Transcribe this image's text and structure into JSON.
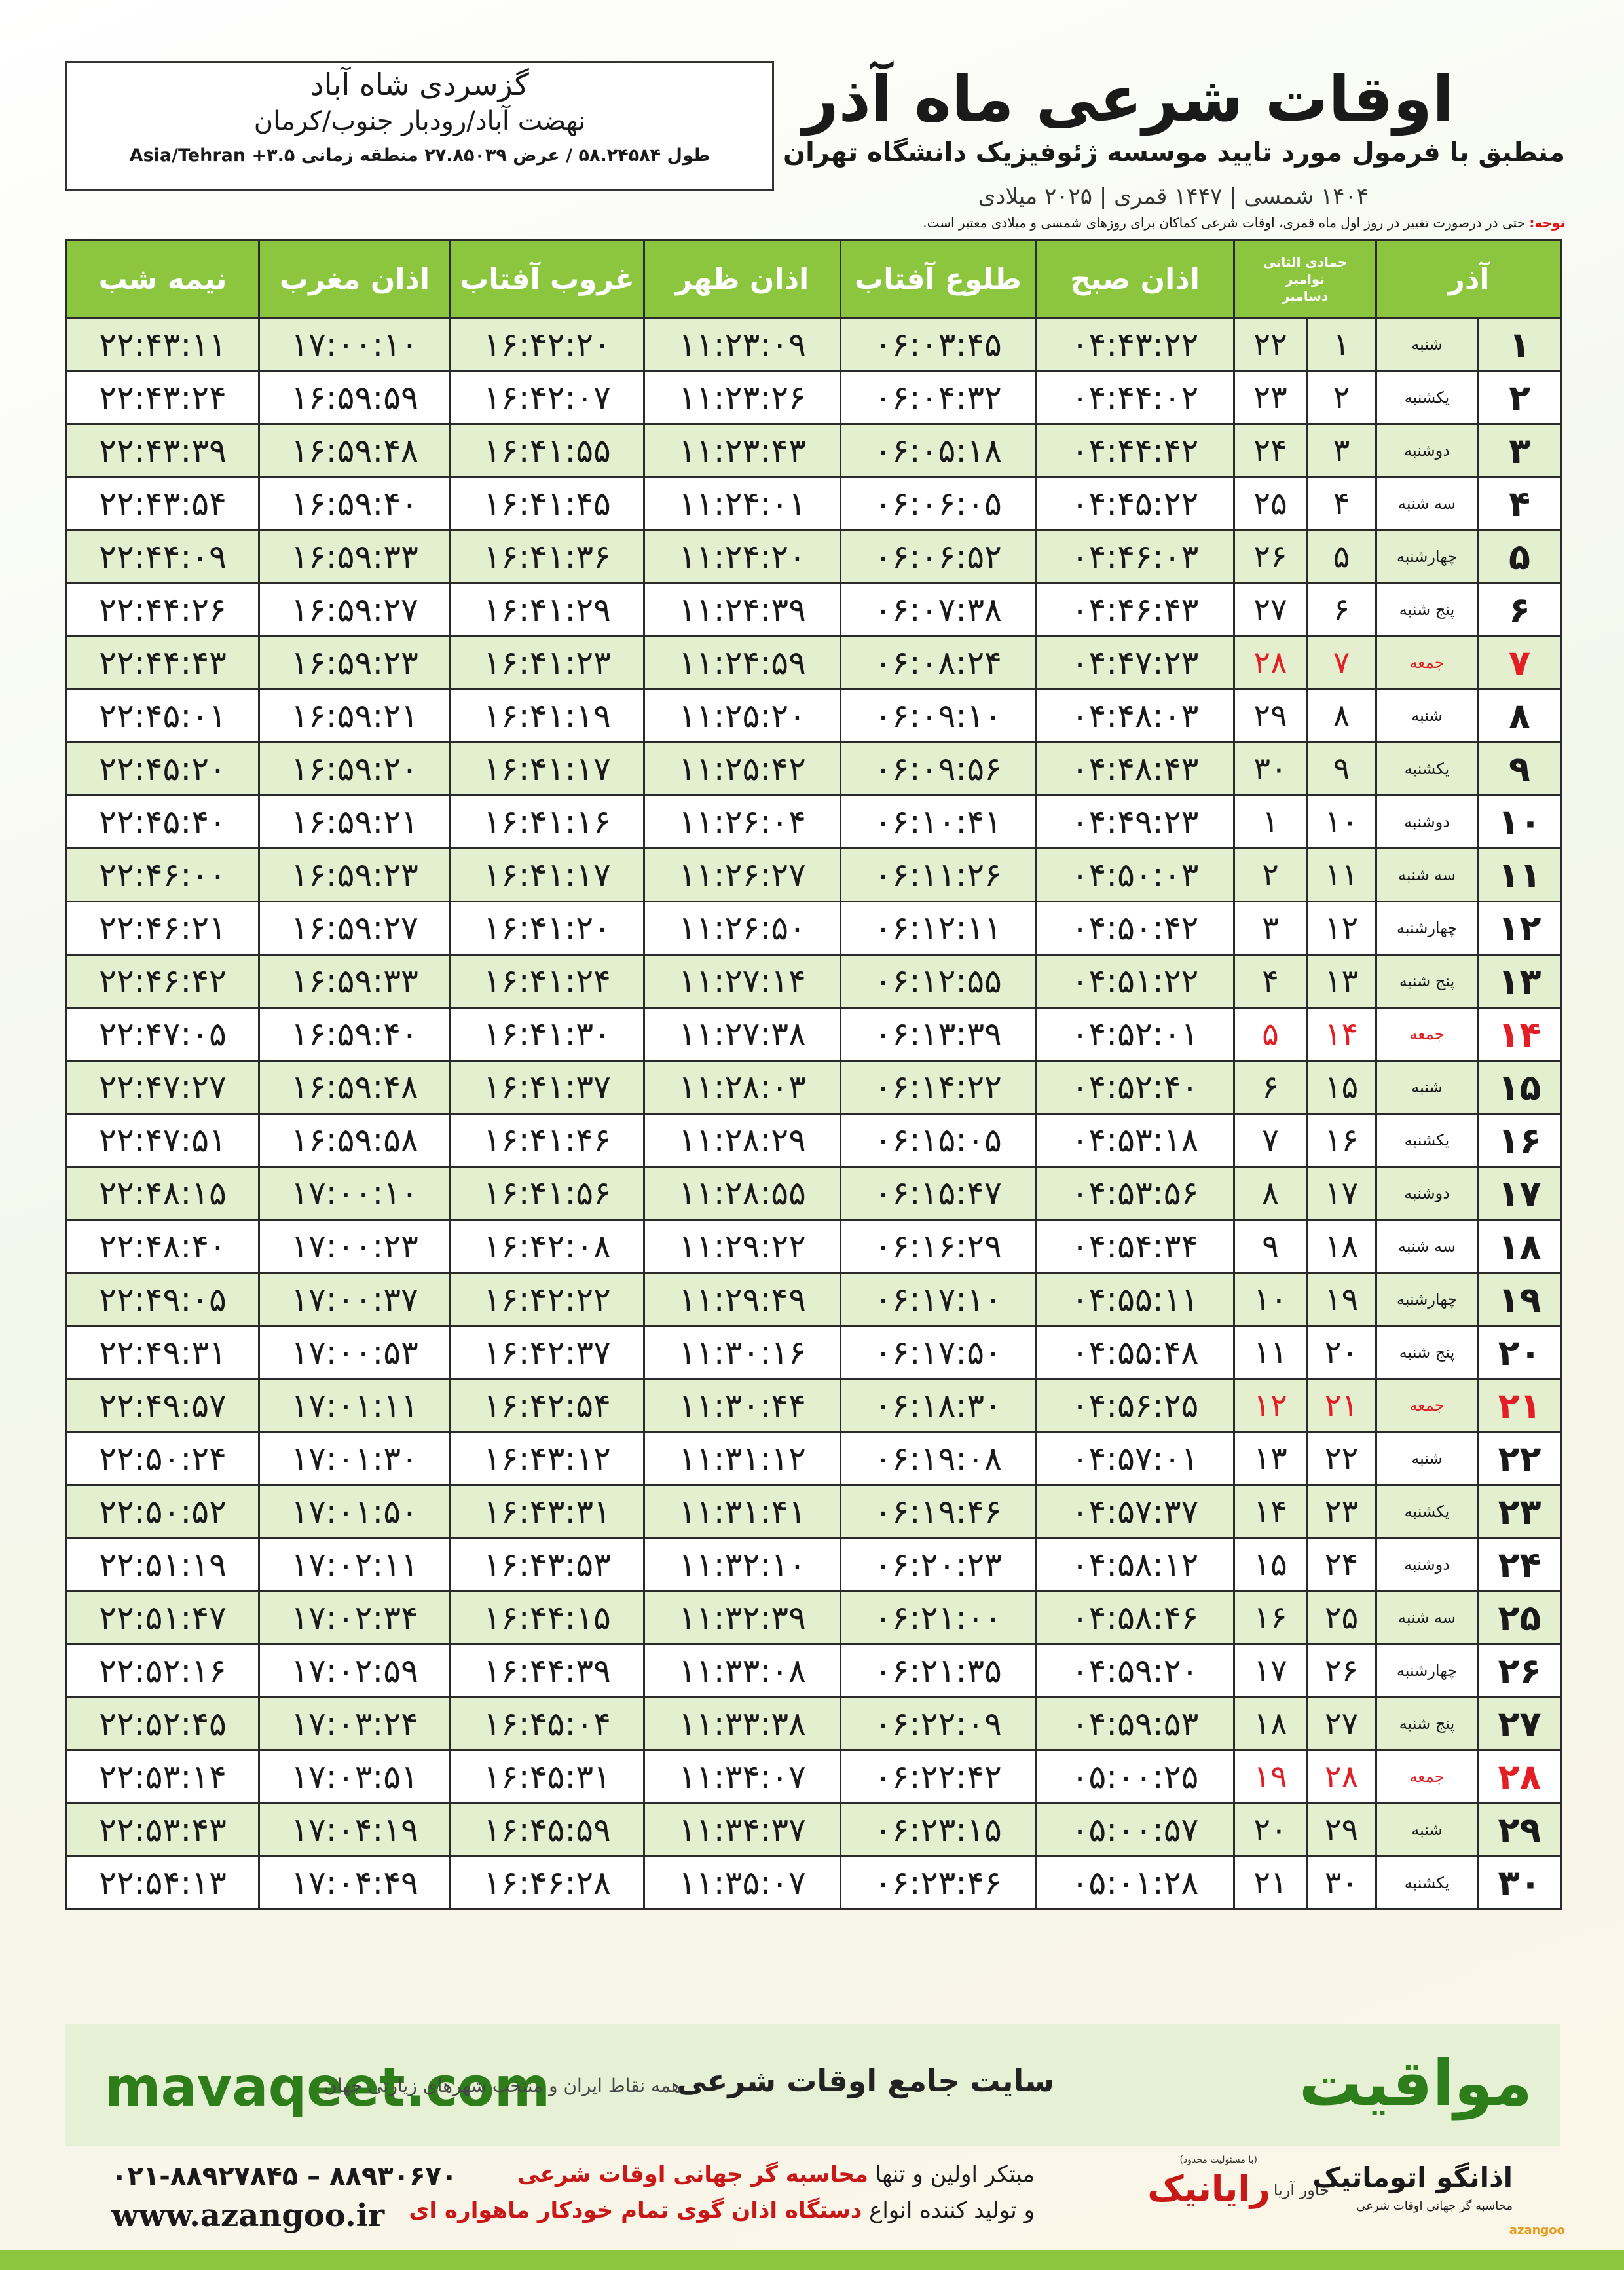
{
  "header": {
    "title": "اوقات شرعی ماه آذر",
    "subtitle": "منطبق با فرمول مورد تایید موسسه ژئوفیزیک دانشگاه تهران",
    "dates": "۱۴۰۴ شمسی | ۱۴۴۷ قمری | ۲۰۲۵ میلادی",
    "location": "گزسردی شاه آباد",
    "region": "نهضت آباد/رودبار جنوب/کرمان",
    "coordinates": "طول ۵۸.۲۴۵۸۴ / عرض ۲۷.۸۵۰۳۹ منطقه زمانی ۳.۵+ Asia/Tehran",
    "note_label": "توجه:",
    "note": "حتی در درصورت تغییر در روز اول ماه قمری، اوقات شرعی کماکان برای روزهای شمسی و میلادی معتبر است."
  },
  "table": {
    "columns": [
      "آذر",
      "جمادی الثانی",
      "نوامبر",
      "دسامبر",
      "اذان صبح",
      "طلوع آفتاب",
      "اذان ظهر",
      "غروب آفتاب",
      "اذان مغرب",
      "نیمه شب"
    ],
    "holiday_color": "#e31e24",
    "rows": [
      {
        "cells": [
          "۱",
          "شنبه",
          "۱",
          "۲۲",
          "۰۴:۴۳:۲۲",
          "۰۶:۰۳:۴۵",
          "۱۱:۲۳:۰۹",
          "۱۶:۴۲:۲۰",
          "۱۷:۰۰:۱۰",
          "۲۲:۴۳:۱۱"
        ],
        "holiday": false
      },
      {
        "cells": [
          "۲",
          "یکشنبه",
          "۲",
          "۲۳",
          "۰۴:۴۴:۰۲",
          "۰۶:۰۴:۳۲",
          "۱۱:۲۳:۲۶",
          "۱۶:۴۲:۰۷",
          "۱۶:۵۹:۵۹",
          "۲۲:۴۳:۲۴"
        ],
        "holiday": false
      },
      {
        "cells": [
          "۳",
          "دوشنبه",
          "۳",
          "۲۴",
          "۰۴:۴۴:۴۲",
          "۰۶:۰۵:۱۸",
          "۱۱:۲۳:۴۳",
          "۱۶:۴۱:۵۵",
          "۱۶:۵۹:۴۸",
          "۲۲:۴۳:۳۹"
        ],
        "holiday": false
      },
      {
        "cells": [
          "۴",
          "سه شنبه",
          "۴",
          "۲۵",
          "۰۴:۴۵:۲۲",
          "۰۶:۰۶:۰۵",
          "۱۱:۲۴:۰۱",
          "۱۶:۴۱:۴۵",
          "۱۶:۵۹:۴۰",
          "۲۲:۴۳:۵۴"
        ],
        "holiday": false
      },
      {
        "cells": [
          "۵",
          "چهارشنبه",
          "۵",
          "۲۶",
          "۰۴:۴۶:۰۳",
          "۰۶:۰۶:۵۲",
          "۱۱:۲۴:۲۰",
          "۱۶:۴۱:۳۶",
          "۱۶:۵۹:۳۳",
          "۲۲:۴۴:۰۹"
        ],
        "holiday": false
      },
      {
        "cells": [
          "۶",
          "پنج شنبه",
          "۶",
          "۲۷",
          "۰۴:۴۶:۴۳",
          "۰۶:۰۷:۳۸",
          "۱۱:۲۴:۳۹",
          "۱۶:۴۱:۲۹",
          "۱۶:۵۹:۲۷",
          "۲۲:۴۴:۲۶"
        ],
        "holiday": false
      },
      {
        "cells": [
          "۷",
          "جمعه",
          "۷",
          "۲۸",
          "۰۴:۴۷:۲۳",
          "۰۶:۰۸:۲۴",
          "۱۱:۲۴:۵۹",
          "۱۶:۴۱:۲۳",
          "۱۶:۵۹:۲۳",
          "۲۲:۴۴:۴۳"
        ],
        "holiday": true
      },
      {
        "cells": [
          "۸",
          "شنبه",
          "۸",
          "۲۹",
          "۰۴:۴۸:۰۳",
          "۰۶:۰۹:۱۰",
          "۱۱:۲۵:۲۰",
          "۱۶:۴۱:۱۹",
          "۱۶:۵۹:۲۱",
          "۲۲:۴۵:۰۱"
        ],
        "holiday": false
      },
      {
        "cells": [
          "۹",
          "یکشنبه",
          "۹",
          "۳۰",
          "۰۴:۴۸:۴۳",
          "۰۶:۰۹:۵۶",
          "۱۱:۲۵:۴۲",
          "۱۶:۴۱:۱۷",
          "۱۶:۵۹:۲۰",
          "۲۲:۴۵:۲۰"
        ],
        "holiday": false
      },
      {
        "cells": [
          "۱۰",
          "دوشنبه",
          "۱۰",
          "۱",
          "۰۴:۴۹:۲۳",
          "۰۶:۱۰:۴۱",
          "۱۱:۲۶:۰۴",
          "۱۶:۴۱:۱۶",
          "۱۶:۵۹:۲۱",
          "۲۲:۴۵:۴۰"
        ],
        "holiday": false
      },
      {
        "cells": [
          "۱۱",
          "سه شنبه",
          "۱۱",
          "۲",
          "۰۴:۵۰:۰۳",
          "۰۶:۱۱:۲۶",
          "۱۱:۲۶:۲۷",
          "۱۶:۴۱:۱۷",
          "۱۶:۵۹:۲۳",
          "۲۲:۴۶:۰۰"
        ],
        "holiday": false
      },
      {
        "cells": [
          "۱۲",
          "چهارشنبه",
          "۱۲",
          "۳",
          "۰۴:۵۰:۴۲",
          "۰۶:۱۲:۱۱",
          "۱۱:۲۶:۵۰",
          "۱۶:۴۱:۲۰",
          "۱۶:۵۹:۲۷",
          "۲۲:۴۶:۲۱"
        ],
        "holiday": false
      },
      {
        "cells": [
          "۱۳",
          "پنج شنبه",
          "۱۳",
          "۴",
          "۰۴:۵۱:۲۲",
          "۰۶:۱۲:۵۵",
          "۱۱:۲۷:۱۴",
          "۱۶:۴۱:۲۴",
          "۱۶:۵۹:۳۳",
          "۲۲:۴۶:۴۲"
        ],
        "holiday": false
      },
      {
        "cells": [
          "۱۴",
          "جمعه",
          "۱۴",
          "۵",
          "۰۴:۵۲:۰۱",
          "۰۶:۱۳:۳۹",
          "۱۱:۲۷:۳۸",
          "۱۶:۴۱:۳۰",
          "۱۶:۵۹:۴۰",
          "۲۲:۴۷:۰۵"
        ],
        "holiday": true
      },
      {
        "cells": [
          "۱۵",
          "شنبه",
          "۱۵",
          "۶",
          "۰۴:۵۲:۴۰",
          "۰۶:۱۴:۲۲",
          "۱۱:۲۸:۰۳",
          "۱۶:۴۱:۳۷",
          "۱۶:۵۹:۴۸",
          "۲۲:۴۷:۲۷"
        ],
        "holiday": false
      },
      {
        "cells": [
          "۱۶",
          "یکشنبه",
          "۱۶",
          "۷",
          "۰۴:۵۳:۱۸",
          "۰۶:۱۵:۰۵",
          "۱۱:۲۸:۲۹",
          "۱۶:۴۱:۴۶",
          "۱۶:۵۹:۵۸",
          "۲۲:۴۷:۵۱"
        ],
        "holiday": false
      },
      {
        "cells": [
          "۱۷",
          "دوشنبه",
          "۱۷",
          "۸",
          "۰۴:۵۳:۵۶",
          "۰۶:۱۵:۴۷",
          "۱۱:۲۸:۵۵",
          "۱۶:۴۱:۵۶",
          "۱۷:۰۰:۱۰",
          "۲۲:۴۸:۱۵"
        ],
        "holiday": false
      },
      {
        "cells": [
          "۱۸",
          "سه شنبه",
          "۱۸",
          "۹",
          "۰۴:۵۴:۳۴",
          "۰۶:۱۶:۲۹",
          "۱۱:۲۹:۲۲",
          "۱۶:۴۲:۰۸",
          "۱۷:۰۰:۲۳",
          "۲۲:۴۸:۴۰"
        ],
        "holiday": false
      },
      {
        "cells": [
          "۱۹",
          "چهارشنبه",
          "۱۹",
          "۱۰",
          "۰۴:۵۵:۱۱",
          "۰۶:۱۷:۱۰",
          "۱۱:۲۹:۴۹",
          "۱۶:۴۲:۲۲",
          "۱۷:۰۰:۳۷",
          "۲۲:۴۹:۰۵"
        ],
        "holiday": false
      },
      {
        "cells": [
          "۲۰",
          "پنج شنبه",
          "۲۰",
          "۱۱",
          "۰۴:۵۵:۴۸",
          "۰۶:۱۷:۵۰",
          "۱۱:۳۰:۱۶",
          "۱۶:۴۲:۳۷",
          "۱۷:۰۰:۵۳",
          "۲۲:۴۹:۳۱"
        ],
        "holiday": false
      },
      {
        "cells": [
          "۲۱",
          "جمعه",
          "۲۱",
          "۱۲",
          "۰۴:۵۶:۲۵",
          "۰۶:۱۸:۳۰",
          "۱۱:۳۰:۴۴",
          "۱۶:۴۲:۵۴",
          "۱۷:۰۱:۱۱",
          "۲۲:۴۹:۵۷"
        ],
        "holiday": true
      },
      {
        "cells": [
          "۲۲",
          "شنبه",
          "۲۲",
          "۱۳",
          "۰۴:۵۷:۰۱",
          "۰۶:۱۹:۰۸",
          "۱۱:۳۱:۱۲",
          "۱۶:۴۳:۱۲",
          "۱۷:۰۱:۳۰",
          "۲۲:۵۰:۲۴"
        ],
        "holiday": false
      },
      {
        "cells": [
          "۲۳",
          "یکشنبه",
          "۲۳",
          "۱۴",
          "۰۴:۵۷:۳۷",
          "۰۶:۱۹:۴۶",
          "۱۱:۳۱:۴۱",
          "۱۶:۴۳:۳۱",
          "۱۷:۰۱:۵۰",
          "۲۲:۵۰:۵۲"
        ],
        "holiday": false
      },
      {
        "cells": [
          "۲۴",
          "دوشنبه",
          "۲۴",
          "۱۵",
          "۰۴:۵۸:۱۲",
          "۰۶:۲۰:۲۳",
          "۱۱:۳۲:۱۰",
          "۱۶:۴۳:۵۳",
          "۱۷:۰۲:۱۱",
          "۲۲:۵۱:۱۹"
        ],
        "holiday": false
      },
      {
        "cells": [
          "۲۵",
          "سه شنبه",
          "۲۵",
          "۱۶",
          "۰۴:۵۸:۴۶",
          "۰۶:۲۱:۰۰",
          "۱۱:۳۲:۳۹",
          "۱۶:۴۴:۱۵",
          "۱۷:۰۲:۳۴",
          "۲۲:۵۱:۴۷"
        ],
        "holiday": false
      },
      {
        "cells": [
          "۲۶",
          "چهارشنبه",
          "۲۶",
          "۱۷",
          "۰۴:۵۹:۲۰",
          "۰۶:۲۱:۳۵",
          "۱۱:۳۳:۰۸",
          "۱۶:۴۴:۳۹",
          "۱۷:۰۲:۵۹",
          "۲۲:۵۲:۱۶"
        ],
        "holiday": false
      },
      {
        "cells": [
          "۲۷",
          "پنج شنبه",
          "۲۷",
          "۱۸",
          "۰۴:۵۹:۵۳",
          "۰۶:۲۲:۰۹",
          "۱۱:۳۳:۳۸",
          "۱۶:۴۵:۰۴",
          "۱۷:۰۳:۲۴",
          "۲۲:۵۲:۴۵"
        ],
        "holiday": false
      },
      {
        "cells": [
          "۲۸",
          "جمعه",
          "۲۸",
          "۱۹",
          "۰۵:۰۰:۲۵",
          "۰۶:۲۲:۴۲",
          "۱۱:۳۴:۰۷",
          "۱۶:۴۵:۳۱",
          "۱۷:۰۳:۵۱",
          "۲۲:۵۳:۱۴"
        ],
        "holiday": true
      },
      {
        "cells": [
          "۲۹",
          "شنبه",
          "۲۹",
          "۲۰",
          "۰۵:۰۰:۵۷",
          "۰۶:۲۳:۱۵",
          "۱۱:۳۴:۳۷",
          "۱۶:۴۵:۵۹",
          "۱۷:۰۴:۱۹",
          "۲۲:۵۳:۴۳"
        ],
        "holiday": false
      },
      {
        "cells": [
          "۳۰",
          "یکشنبه",
          "۳۰",
          "۲۱",
          "۰۵:۰۱:۲۸",
          "۰۶:۲۳:۴۶",
          "۱۱:۳۵:۰۷",
          "۱۶:۴۶:۲۸",
          "۱۷:۰۴:۴۹",
          "۲۲:۵۴:۱۳"
        ],
        "holiday": false
      }
    ]
  },
  "footer": {
    "brand": "مواقیت",
    "site_description": "سایت جامع اوقات شرعی",
    "site_subtitle": "همه نقاط ایران و منتخب شهرهای زیارتی جهان",
    "site": "mavaqeet.com",
    "phone": "۰۲۱-۸۸۹۲۷۸۴۵ – ۸۸۹۳۰۶۷۰",
    "web": "www.azangoo.ir",
    "promo_1a": "مبتکر اولین و تنها",
    "promo_1b": "محاسبه گر جهانی اوقات شرعی",
    "promo_2a": "و تولید کننده انواع",
    "promo_2b": "دستگاه اذان گوی تمام خودکار ماهواره ای",
    "logo_1": "رایانیک",
    "logo_1_sub": "خاور آریا",
    "logo_1_tag": "(با مسئولیت محدود)",
    "logo_2": "اذانگو اتوماتیک",
    "logo_2_sub": "محاسبه گر جهانی اوقات شرعی",
    "logo_2_en": "azangoo"
  }
}
